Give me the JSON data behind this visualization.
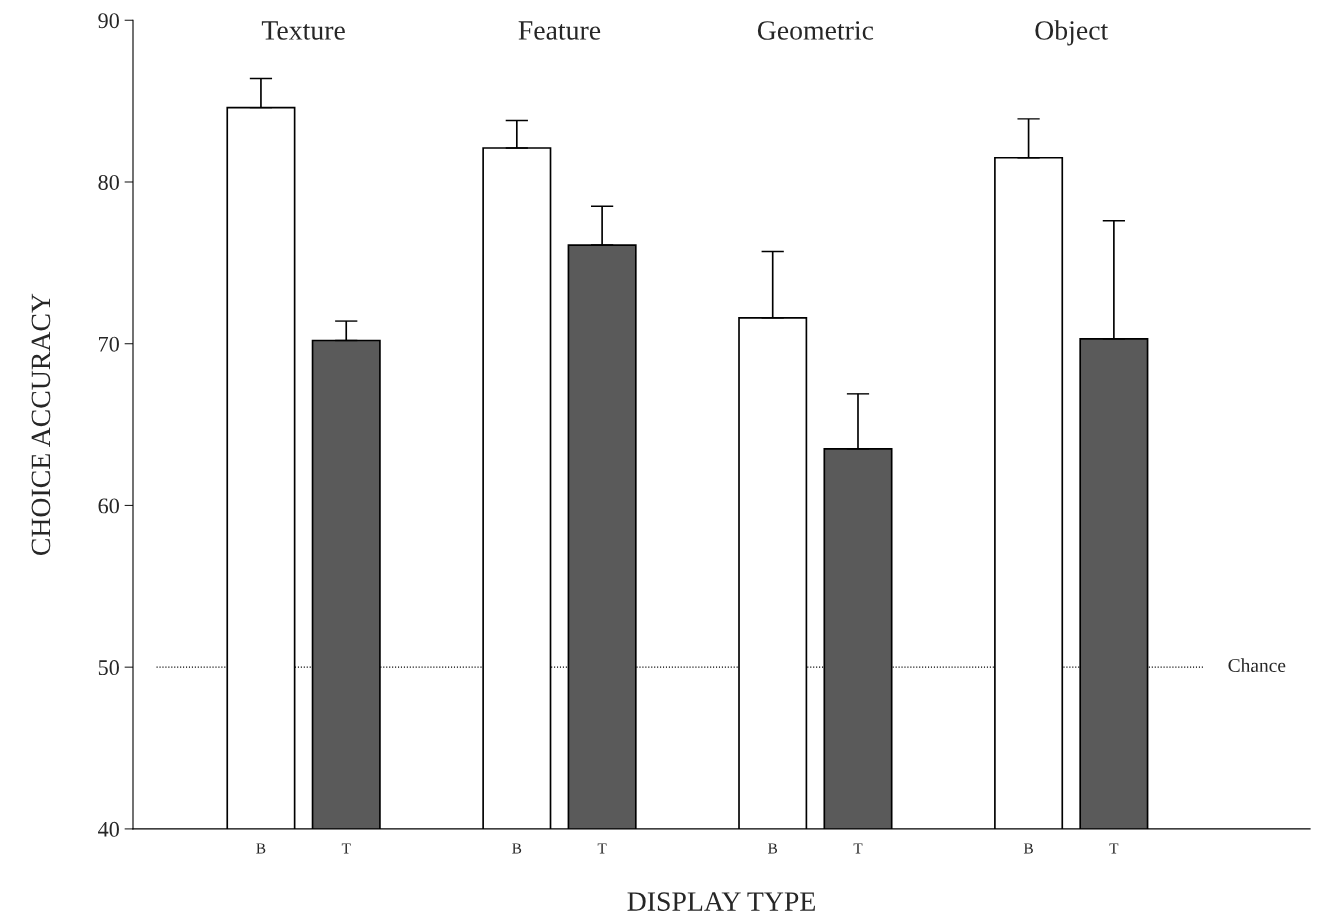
{
  "chart_data": {
    "type": "bar",
    "xlabel": "DISPLAY TYPE",
    "ylabel": "CHOICE ACCURACY",
    "categories": [
      "B",
      "T",
      "B",
      "T",
      "B",
      "T",
      "B",
      "T"
    ],
    "values": [
      84.6,
      70.2,
      82.1,
      76.1,
      71.6,
      63.5,
      81.5,
      70.3
    ],
    "errors": [
      [
        84.6,
        86.4
      ],
      [
        70.2,
        71.4
      ],
      [
        82.1,
        83.8
      ],
      [
        76.1,
        78.5
      ],
      [
        71.6,
        75.7
      ],
      [
        63.5,
        66.9
      ],
      [
        81.5,
        83.9
      ],
      [
        70.3,
        77.6
      ]
    ],
    "colors": [
      "#ffffff",
      "#5a5a5a",
      "#ffffff",
      "#5a5a5a",
      "#ffffff",
      "#5a5a5a",
      "#ffffff",
      "#5a5a5a"
    ],
    "annotations": [
      "Texture",
      "Feature",
      "Geometric",
      "Object"
    ],
    "ref_lines": [
      {
        "axis": "y",
        "value": 50,
        "label": "Chance",
        "line_style": "dotted"
      }
    ],
    "ylim": [
      40,
      90
    ],
    "yticks": [
      40,
      50,
      60,
      70,
      80,
      90
    ],
    "grid": false,
    "legend": false
  }
}
